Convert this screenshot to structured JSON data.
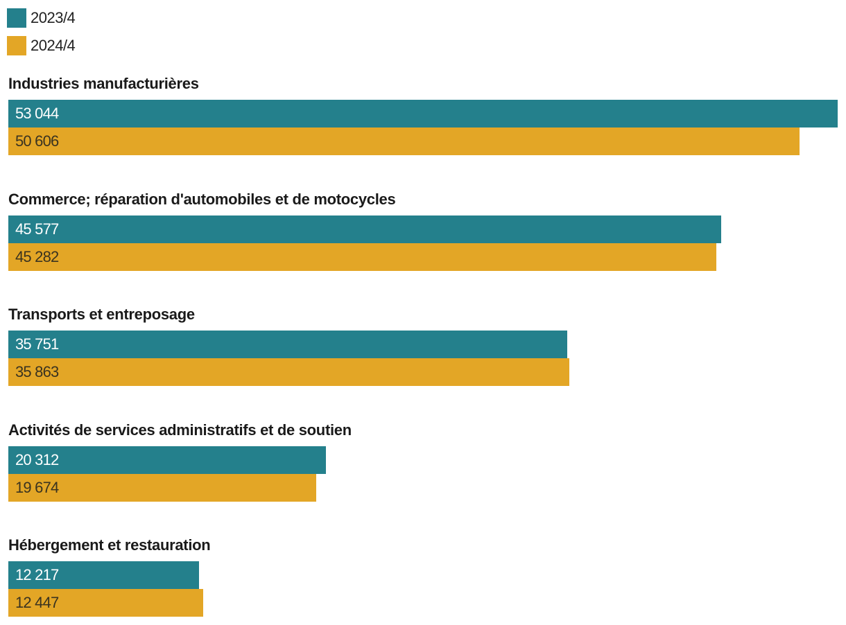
{
  "chart_data": {
    "type": "bar",
    "orientation": "horizontal",
    "legend_position": "top-left",
    "categories": [
      "Industries manufacturières",
      "Commerce; réparation d'automobiles et de motocycles",
      "Transports et entreposage",
      "Activités de services administratifs et de soutien",
      "Hébergement et restauration"
    ],
    "series": [
      {
        "name": "2023/4",
        "color": "#24808c",
        "label_color": "#ffffff",
        "values": [
          53044,
          45577,
          35751,
          20312,
          12217
        ],
        "labels": [
          "53 044",
          "45 577",
          "35 751",
          "20 312",
          "12 217"
        ]
      },
      {
        "name": "2024/4",
        "color": "#e3a626",
        "label_color": "#3a3320",
        "values": [
          50606,
          45282,
          35863,
          19674,
          12447
        ],
        "labels": [
          "50 606",
          "45 282",
          "35 863",
          "19 674",
          "12 447"
        ]
      }
    ],
    "xlim": [
      0,
      53044
    ]
  }
}
